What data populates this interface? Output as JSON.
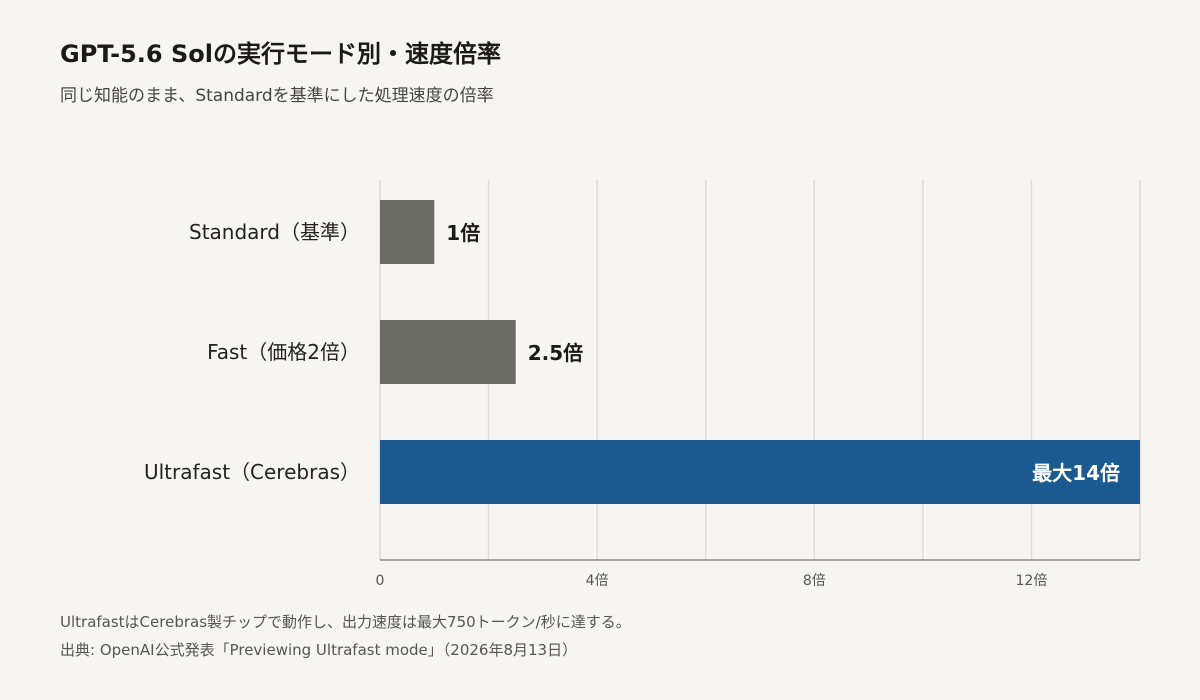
{
  "header": {
    "title": "GPT-5.6 Solの実行モード別・速度倍率",
    "subtitle": "同じ知能のまま、Standardを基準にした処理速度の倍率"
  },
  "footer": {
    "note": "UltrafastはCerebras製チップで動作し、出力速度は最大750トークン/秒に達する。",
    "source": "出典: OpenAI公式発表「Previewing Ultrafast mode」（2026年8月13日）"
  },
  "colors": {
    "neutral_bar": "#6c6c67",
    "highlight_bar": "#1b5a91",
    "gridline": "#dcdbd6",
    "axis": "#8a8a86",
    "background": "#f6f5f1"
  },
  "chart_data": {
    "type": "bar",
    "orientation": "horizontal",
    "categories": [
      "Standard（基準）",
      "Fast（価格2倍）",
      "Ultrafast（Cerebras）"
    ],
    "values": [
      1,
      2.5,
      14
    ],
    "data_labels": [
      "1倍",
      "2.5倍",
      "最大14倍"
    ],
    "highlight_index": 2,
    "xlim": [
      0,
      14
    ],
    "ticks": [
      0,
      4,
      8,
      12
    ],
    "tick_labels": [
      "0",
      "4倍",
      "8倍",
      "12倍"
    ],
    "minor_gridlines": [
      2,
      6,
      10
    ],
    "grid": true
  }
}
